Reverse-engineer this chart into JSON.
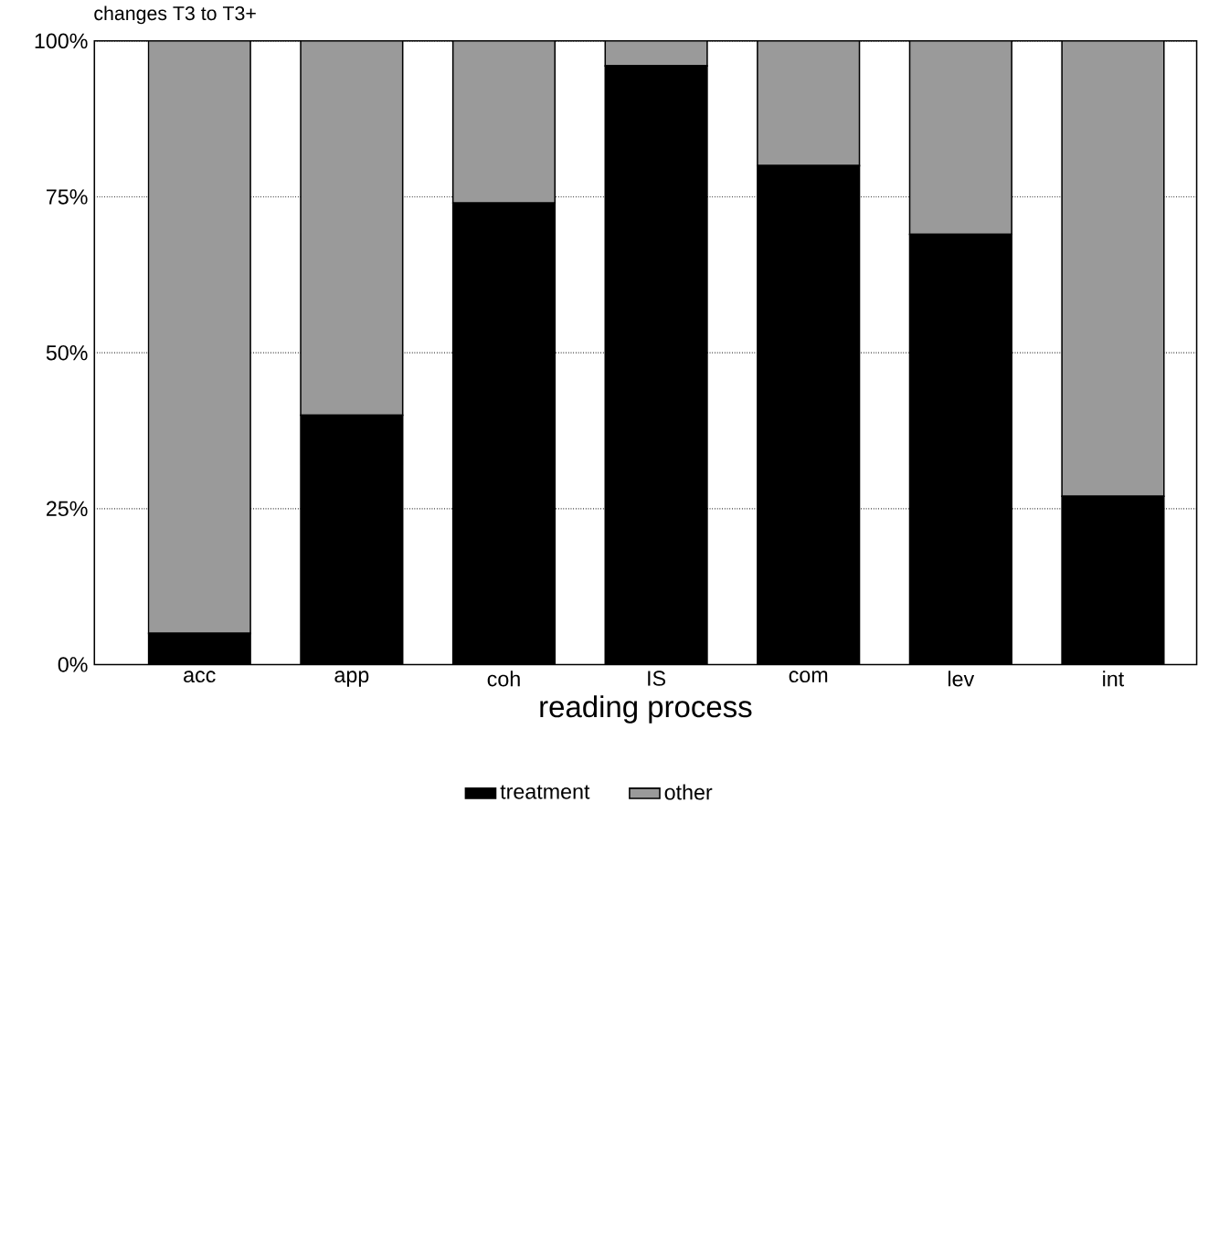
{
  "chart_data": {
    "type": "bar",
    "title": "changes T3 to T3+",
    "xlabel": "reading process",
    "categories": [
      "acc",
      "app",
      "coh",
      "IS",
      "com",
      "lev",
      "int"
    ],
    "series": [
      {
        "name": "treatment",
        "color": "#000000",
        "values": [
          5,
          40,
          74,
          96,
          80,
          69,
          27
        ]
      },
      {
        "name": "other",
        "color": "#9a9a9a",
        "values": [
          95,
          60,
          26,
          4,
          20,
          31,
          73
        ]
      }
    ],
    "stacked": true,
    "ylim": [
      0,
      100
    ],
    "yticks": [
      {
        "value": 0,
        "label": "0%"
      },
      {
        "value": 25,
        "label": "25%"
      },
      {
        "value": 50,
        "label": "50%"
      },
      {
        "value": 75,
        "label": "75%"
      },
      {
        "value": 100,
        "label": "100%"
      }
    ],
    "grid": "y",
    "legend": "bottom"
  }
}
